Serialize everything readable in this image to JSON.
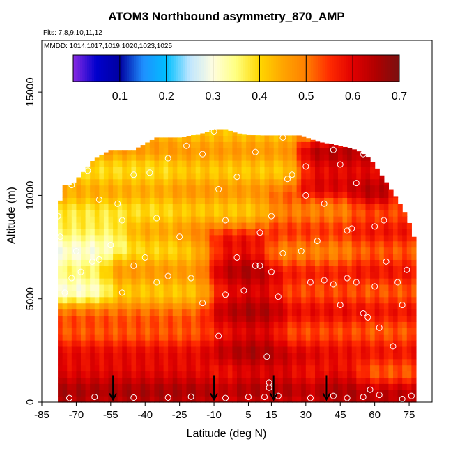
{
  "chart_data": {
    "type": "heatmap",
    "title": "ATOM3 Northbound asymmetry_870_AMP",
    "flights_label": "Flts: 7,8,9,10,11,12",
    "mmdd_label": "MMDD: 1014,1017,1019,1020,1023,1025",
    "xlabel": "Latitude (deg N)",
    "ylabel": "Altitude (m)",
    "xlim": [
      -85,
      85
    ],
    "ylim": [
      0,
      17500
    ],
    "x_ticks": [
      -85,
      -70,
      -55,
      -40,
      -25,
      -10,
      5,
      15,
      30,
      45,
      60,
      75
    ],
    "y_ticks": [
      0,
      5000,
      10000,
      15000
    ],
    "colorbar": {
      "range": [
        0.0,
        0.7
      ],
      "ticks": [
        0.1,
        0.2,
        0.3,
        0.4,
        0.5,
        0.6,
        0.7
      ],
      "colors": [
        "#8a2be2",
        "#0000cd",
        "#0000a0",
        "#1e90ff",
        "#00bfff",
        "#bfe6ff",
        "#fffde0",
        "#ffff80",
        "#ffd700",
        "#ffa500",
        "#ff7f00",
        "#ff2a00",
        "#e00000",
        "#b00000",
        "#7a1010"
      ]
    },
    "data_extent_top": [
      [
        -78,
        9000
      ],
      [
        -76,
        10500
      ],
      [
        -72,
        10500
      ],
      [
        -68,
        11000
      ],
      [
        -62,
        11800
      ],
      [
        -55,
        12200
      ],
      [
        -45,
        12200
      ],
      [
        -35,
        12800
      ],
      [
        -25,
        12800
      ],
      [
        -15,
        13000
      ],
      [
        -10,
        13200
      ],
      [
        -5,
        13200
      ],
      [
        0,
        13000
      ],
      [
        10,
        12900
      ],
      [
        20,
        12900
      ],
      [
        28,
        12900
      ],
      [
        35,
        12600
      ],
      [
        45,
        12400
      ],
      [
        52,
        12200
      ],
      [
        58,
        11800
      ],
      [
        64,
        10800
      ],
      [
        70,
        9800
      ],
      [
        74,
        9000
      ],
      [
        77,
        8000
      ],
      [
        78,
        6000
      ],
      [
        78.5,
        0
      ]
    ],
    "zones": [
      {
        "lat_min": -80,
        "lat_max": 80,
        "alt_min": 0,
        "alt_max": 13500,
        "value": 0.46
      },
      {
        "lat_min": -80,
        "lat_max": -30,
        "alt_min": 6000,
        "alt_max": 11500,
        "value": 0.42
      },
      {
        "lat_min": -78,
        "lat_max": -55,
        "alt_min": 5500,
        "alt_max": 8000,
        "value": 0.33
      },
      {
        "lat_min": -50,
        "lat_max": -15,
        "alt_min": 4000,
        "alt_max": 6500,
        "value": 0.44
      },
      {
        "lat_min": -80,
        "lat_max": 80,
        "alt_min": 0,
        "alt_max": 3500,
        "value": 0.55
      },
      {
        "lat_min": -78,
        "lat_max": 78,
        "alt_min": 0,
        "alt_max": 1200,
        "value": 0.63
      },
      {
        "lat_min": -5,
        "lat_max": 30,
        "alt_min": 0,
        "alt_max": 7500,
        "value": 0.6
      },
      {
        "lat_min": 5,
        "lat_max": 20,
        "alt_min": 1000,
        "alt_max": 6500,
        "value": 0.63
      },
      {
        "lat_min": 25,
        "lat_max": 70,
        "alt_min": 3000,
        "alt_max": 9000,
        "value": 0.56
      },
      {
        "lat_min": 30,
        "lat_max": 62,
        "alt_min": 10000,
        "alt_max": 12000,
        "value": 0.62
      },
      {
        "lat_min": 60,
        "lat_max": 78,
        "alt_min": 1500,
        "alt_max": 8500,
        "value": 0.55
      },
      {
        "lat_min": -20,
        "lat_max": 20,
        "alt_min": 9500,
        "alt_max": 12500,
        "value": 0.44
      },
      {
        "lat_min": 20,
        "lat_max": 45,
        "alt_min": 7000,
        "alt_max": 9500,
        "value": 0.52
      }
    ],
    "sample_points": [
      [
        -73,
        200
      ],
      [
        -62,
        250
      ],
      [
        -45,
        220
      ],
      [
        -30,
        220
      ],
      [
        -20,
        260
      ],
      [
        -5,
        200
      ],
      [
        5,
        250
      ],
      [
        12,
        250
      ],
      [
        14,
        700
      ],
      [
        14,
        950
      ],
      [
        18,
        300
      ],
      [
        32,
        200
      ],
      [
        42,
        300
      ],
      [
        48,
        200
      ],
      [
        55,
        250
      ],
      [
        58,
        600
      ],
      [
        62,
        350
      ],
      [
        72,
        150
      ],
      [
        76,
        300
      ],
      [
        -75,
        5300
      ],
      [
        -72,
        6000
      ],
      [
        -68,
        6300
      ],
      [
        -63,
        6800
      ],
      [
        -60,
        6900
      ],
      [
        -55,
        7600
      ],
      [
        -50,
        5300
      ],
      [
        -45,
        6600
      ],
      [
        -40,
        7000
      ],
      [
        -35,
        5800
      ],
      [
        -30,
        6100
      ],
      [
        -25,
        8000
      ],
      [
        -20,
        6000
      ],
      [
        -15,
        4800
      ],
      [
        -8,
        3200
      ],
      [
        -5,
        5200
      ],
      [
        0,
        7000
      ],
      [
        3,
        5400
      ],
      [
        8,
        6600
      ],
      [
        10,
        6600
      ],
      [
        13,
        2200
      ],
      [
        15,
        6300
      ],
      [
        18,
        5100
      ],
      [
        20,
        7200
      ],
      [
        28,
        7300
      ],
      [
        32,
        5800
      ],
      [
        35,
        7800
      ],
      [
        38,
        5900
      ],
      [
        42,
        5700
      ],
      [
        45,
        4700
      ],
      [
        48,
        6000
      ],
      [
        52,
        5800
      ],
      [
        55,
        4300
      ],
      [
        57,
        4100
      ],
      [
        60,
        5600
      ],
      [
        62,
        3600
      ],
      [
        65,
        6800
      ],
      [
        68,
        2700
      ],
      [
        70,
        5800
      ],
      [
        72,
        4700
      ],
      [
        74,
        6400
      ],
      [
        -77,
        8000
      ],
      [
        -72,
        10500
      ],
      [
        -65,
        11200
      ],
      [
        -60,
        9800
      ],
      [
        -52,
        9600
      ],
      [
        -45,
        11000
      ],
      [
        -38,
        11100
      ],
      [
        -30,
        11800
      ],
      [
        -22,
        12400
      ],
      [
        -15,
        12000
      ],
      [
        -10,
        13100
      ],
      [
        -8,
        10300
      ],
      [
        -5,
        8800
      ],
      [
        0,
        10900
      ],
      [
        8,
        12100
      ],
      [
        15,
        9000
      ],
      [
        20,
        12800
      ],
      [
        22,
        10800
      ],
      [
        24,
        11000
      ],
      [
        30,
        10000
      ],
      [
        38,
        9600
      ],
      [
        42,
        12200
      ],
      [
        45,
        11500
      ],
      [
        48,
        8300
      ],
      [
        52,
        10600
      ],
      [
        55,
        12000
      ],
      [
        60,
        8500
      ],
      [
        64,
        8800
      ],
      [
        -78,
        9000
      ],
      [
        -70,
        7300
      ],
      [
        -35,
        8900
      ],
      [
        -50,
        8800
      ],
      [
        10,
        8200
      ],
      [
        30,
        11400
      ],
      [
        50,
        8400
      ]
    ],
    "arrows_lat": [
      -54,
      -10,
      16,
      39
    ]
  }
}
